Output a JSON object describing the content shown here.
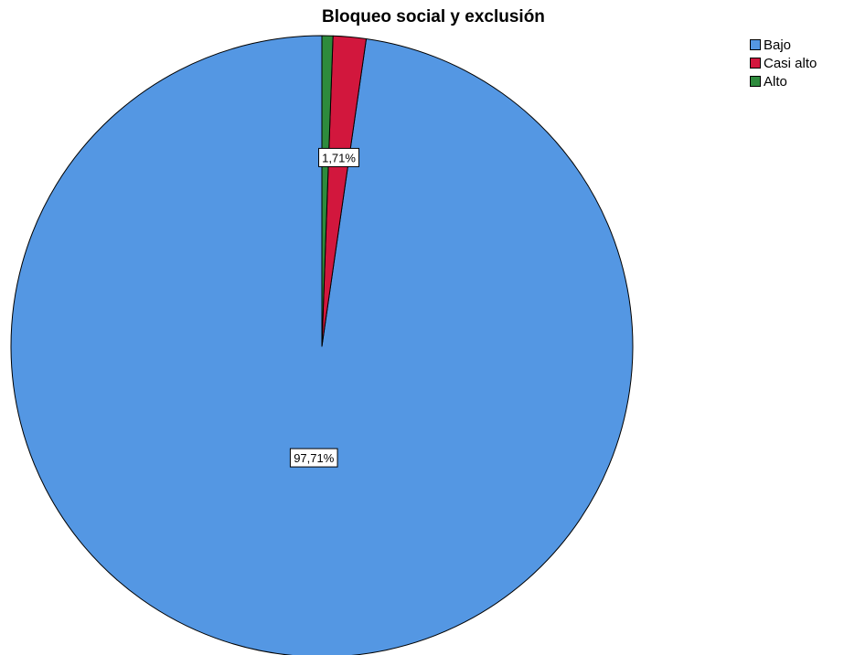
{
  "chart_data": {
    "type": "pie",
    "title": "Bloqueo social y exclusión",
    "start_angle_deg": 0,
    "direction": "counterclockwise",
    "slices": [
      {
        "name": "Bajo",
        "value": 97.71,
        "label": "97,71%",
        "color": "#5497E3"
      },
      {
        "name": "Casi alto",
        "value": 1.71,
        "label": "1,71%",
        "color": "#D2173D"
      },
      {
        "name": "Alto",
        "value": 0.57,
        "label": "",
        "color": "#2E8B3D"
      }
    ],
    "legend_position": "top-right"
  }
}
